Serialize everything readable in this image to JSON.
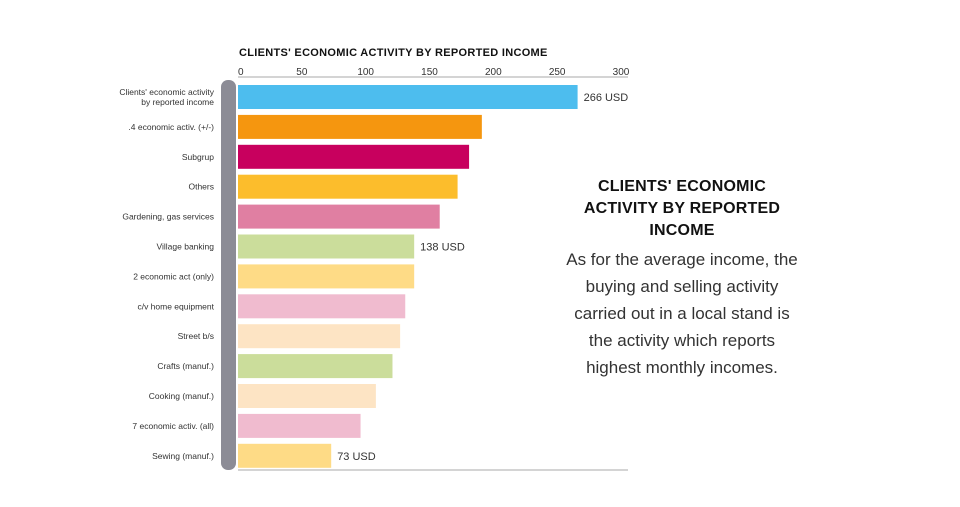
{
  "chart_data": {
    "type": "bar",
    "orientation": "horizontal",
    "title": "CLIENTS' ECONOMIC ACTIVITY BY REPORTED INCOME",
    "xlim": [
      0,
      300
    ],
    "xticks": [
      0,
      50,
      100,
      150,
      200,
      250,
      300
    ],
    "categories": [
      "Clients' economic activity\nby reported income",
      ".4 economic activ. (+/-)",
      "Subgrup",
      "Others",
      "Gardening, gas services",
      "Village banking",
      "2 economic act (only)",
      "c/v home equipment",
      "Street b/s",
      "Crafts (manuf.)",
      "Cooking  (manuf.)",
      "7 economic activ. (all)",
      "Sewing (manuf.)"
    ],
    "values": [
      266,
      191,
      181,
      172,
      158,
      138,
      138,
      131,
      127,
      121,
      108,
      96,
      73
    ],
    "colors": [
      "#4dbdee",
      "#f5960f",
      "#c8005e",
      "#fcbd2c",
      "#e07fa2",
      "#cbdd9b",
      "#fedb86",
      "#f0bbcf",
      "#fde4c4",
      "#cbdd9b",
      "#fde4c4",
      "#f0bbcf",
      "#fedb86"
    ],
    "data_labels": [
      {
        "index": 0,
        "text": "266 USD"
      },
      {
        "index": 5,
        "text": "138 USD"
      },
      {
        "index": 12,
        "text": "73 USD"
      }
    ],
    "grid": false
  },
  "side_panel": {
    "title": "CLIENTS' ECONOMIC ACTIVITY BY REPORTED INCOME",
    "text": "As for the average income, the buying and selling activity carried out in a local stand is the activity which reports highest monthly incomes."
  },
  "colors": {
    "accent_bar": "#8c8c96",
    "axis": "#aaaaaa"
  }
}
